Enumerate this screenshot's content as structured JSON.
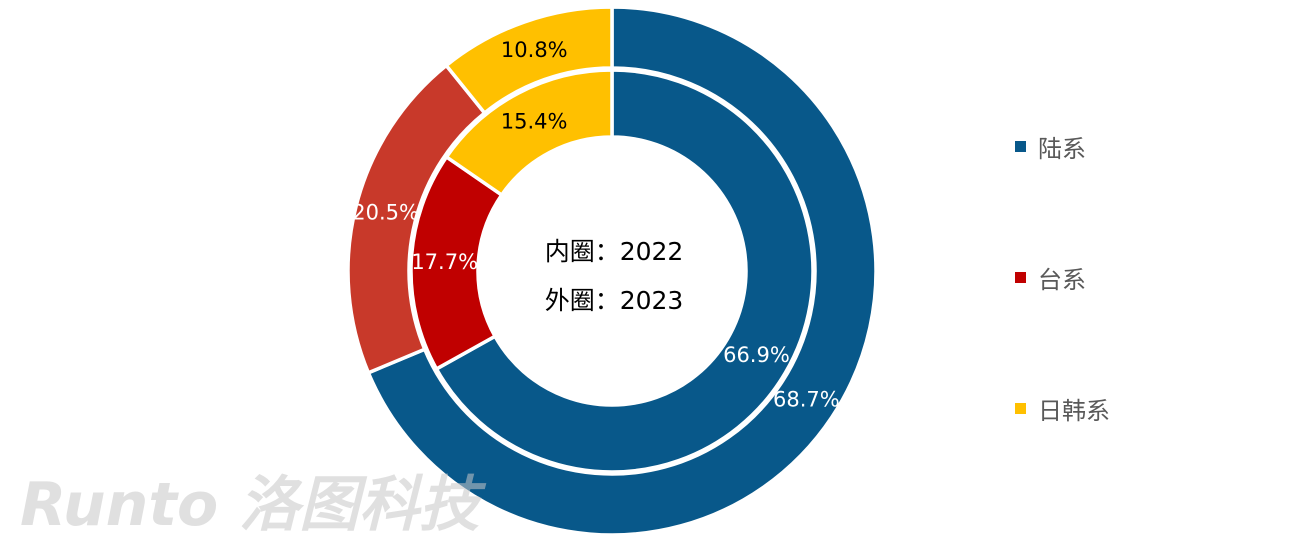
{
  "chart_data": {
    "type": "pie",
    "subtype": "double-donut",
    "center_text": [
      "内圈：2022",
      "外圈：2023"
    ],
    "legend_position": "right",
    "categories": [
      "陆系",
      "台系",
      "日韩系"
    ],
    "colors": [
      "#08588A",
      "#C00000",
      "#FFC000"
    ],
    "outer_colors": [
      "#08588A",
      "#C8392A",
      "#FFC000"
    ],
    "series": [
      {
        "name": "2022",
        "ring": "inner",
        "values": [
          66.9,
          17.7,
          15.4
        ],
        "labels": [
          "66.9%",
          "17.7%",
          "15.4%"
        ]
      },
      {
        "name": "2023",
        "ring": "outer",
        "values": [
          68.7,
          20.5,
          10.8
        ],
        "labels": [
          "68.7%",
          "20.5%",
          "10.8%"
        ]
      }
    ],
    "watermark": "Runto 洛图科技"
  }
}
